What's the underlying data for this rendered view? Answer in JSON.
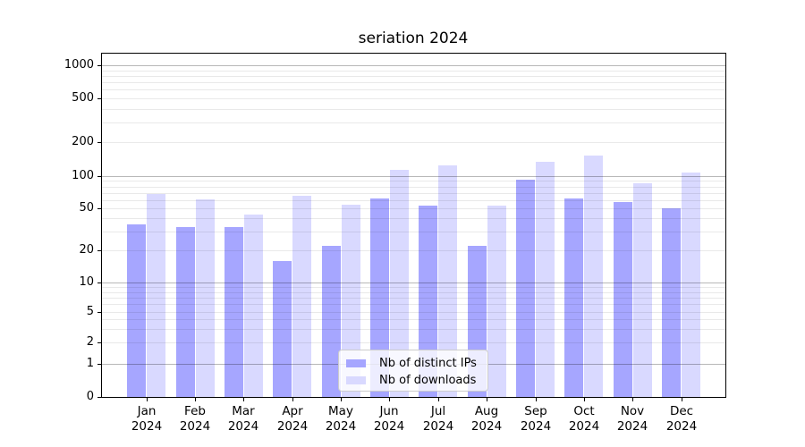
{
  "title": "seriation 2024",
  "chart_data": {
    "type": "bar",
    "title": "seriation 2024",
    "yscale": "symlog",
    "grid": true,
    "legend_position": "lower center",
    "ylim": [
      0,
      1300
    ],
    "y_ticks": [
      0,
      1,
      2,
      5,
      10,
      20,
      50,
      100,
      200,
      500,
      1000
    ],
    "months": [
      "Jan",
      "Feb",
      "Mar",
      "Apr",
      "May",
      "Jun",
      "Jul",
      "Aug",
      "Sep",
      "Oct",
      "Nov",
      "Dec"
    ],
    "year": "2024",
    "categories": [
      "Jan 2024",
      "Feb 2024",
      "Mar 2024",
      "Apr 2024",
      "May 2024",
      "Jun 2024",
      "Jul 2024",
      "Aug 2024",
      "Sep 2024",
      "Oct 2024",
      "Nov 2024",
      "Dec 2024"
    ],
    "series": [
      {
        "name": "Nb of distinct IPs",
        "color": "#a6a6ff",
        "values": [
          35,
          33,
          33,
          16,
          22,
          62,
          53,
          22,
          92,
          62,
          57,
          50
        ]
      },
      {
        "name": "Nb of downloads",
        "color": "#d9d9ff",
        "values": [
          68,
          61,
          44,
          66,
          54,
          114,
          125,
          53,
          135,
          152,
          85,
          107
        ]
      }
    ]
  },
  "colors": {
    "major_grid": "#b8b8b8",
    "minor_grid": "#e9e9e9",
    "axis": "#000000",
    "text": "#000000"
  }
}
